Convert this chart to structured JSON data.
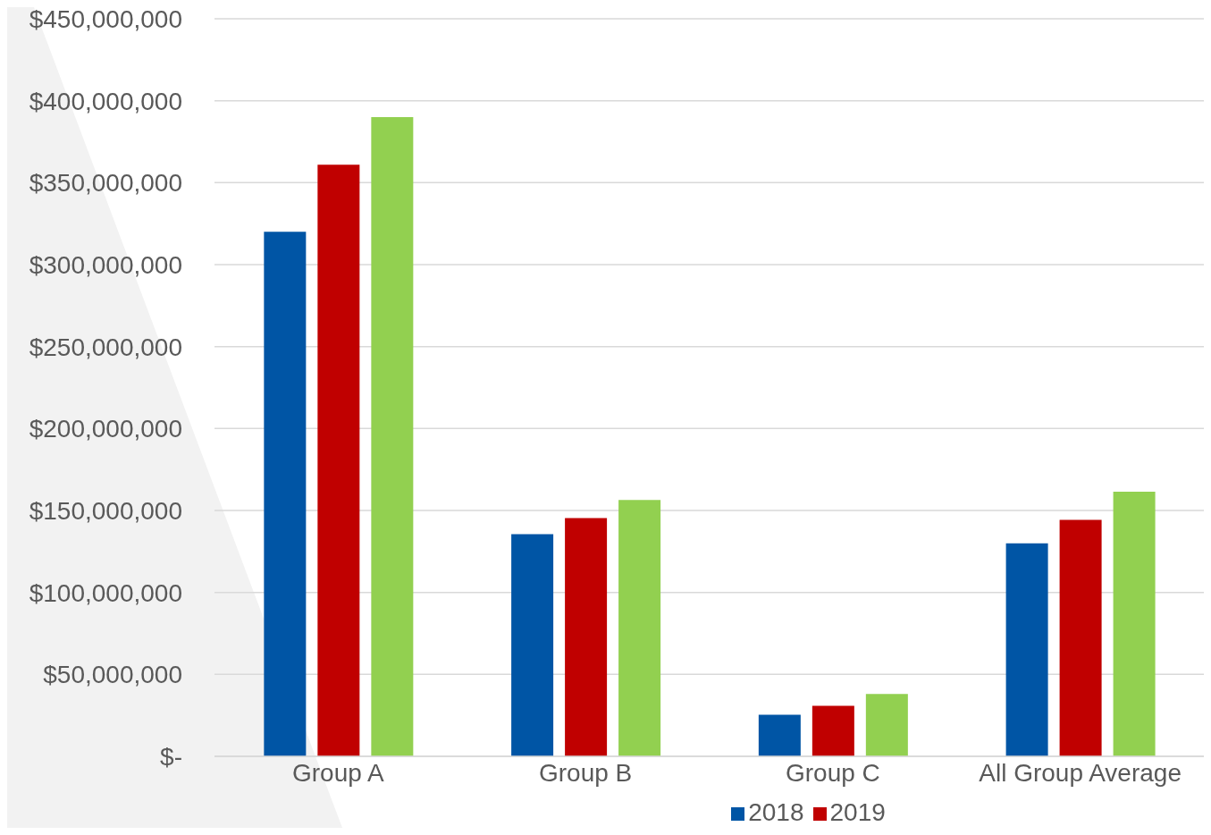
{
  "chart_data": {
    "type": "bar",
    "categories": [
      "Group A",
      "Group B",
      "Group C",
      "All Group Average"
    ],
    "series": [
      {
        "name": "2018",
        "color": "#0055a5",
        "values": [
          320000000,
          135500000,
          25300000,
          130000000
        ]
      },
      {
        "name": "2019",
        "color": "#c00000",
        "values": [
          361000000,
          145400000,
          30800000,
          144300000
        ]
      },
      {
        "color": "#92d050",
        "values": [
          390000000,
          156400000,
          38000000,
          161400000
        ]
      }
    ],
    "ylim": [
      0,
      450000000
    ],
    "yticks": [
      {
        "value": 0,
        "label": "$-"
      },
      {
        "value": 50000000,
        "label": "$50,000,000"
      },
      {
        "value": 100000000,
        "label": "$100,000,000"
      },
      {
        "value": 150000000,
        "label": "$150,000,000"
      },
      {
        "value": 200000000,
        "label": "$200,000,000"
      },
      {
        "value": 250000000,
        "label": "$250,000,000"
      },
      {
        "value": 300000000,
        "label": "$300,000,000"
      },
      {
        "value": 350000000,
        "label": "$350,000,000"
      },
      {
        "value": 400000000,
        "label": "$400,000,000"
      },
      {
        "value": 450000000,
        "label": "$450,000,000"
      }
    ],
    "grid": "y",
    "legend": "bottom"
  }
}
